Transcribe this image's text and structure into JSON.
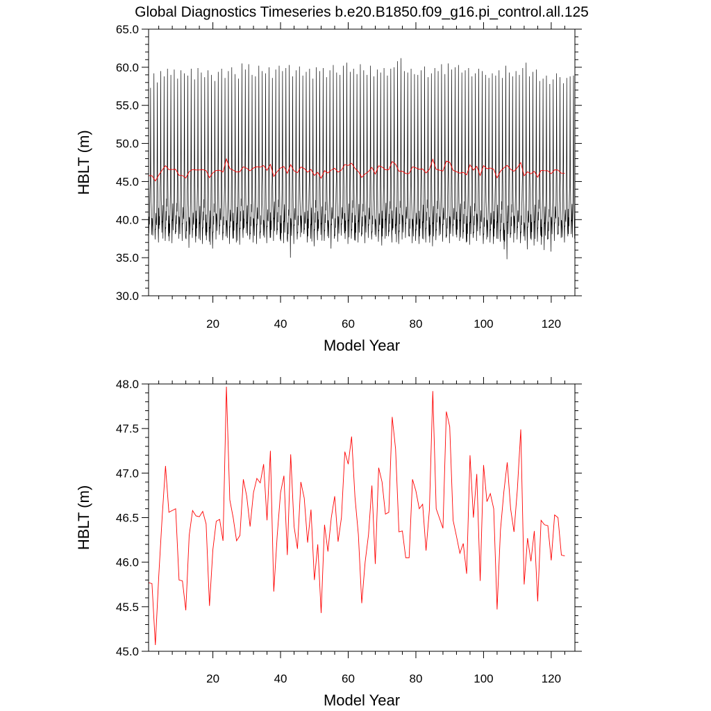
{
  "title": "Global Diagnostics Timeseries b.e20.B1850.f09_g16.pi_control.all.125",
  "colors": {
    "monthly": "#000000",
    "annual": "#ff0000"
  },
  "chart_data": [
    {
      "type": "line",
      "xlabel": "Model Year",
      "ylabel": "HBLT (m)",
      "xlim": [
        1,
        127
      ],
      "ylim": [
        30,
        65
      ],
      "xticks": [
        20,
        40,
        60,
        80,
        100,
        120
      ],
      "xtick_labels": [
        "20",
        "40",
        "60",
        "80",
        "100",
        "120"
      ],
      "yticks": [
        30,
        35,
        40,
        45,
        50,
        55,
        60,
        65
      ],
      "ytick_labels": [
        "30.0",
        "35.0",
        "40.0",
        "45.0",
        "50.0",
        "55.0",
        "60.0",
        "65.0"
      ],
      "series": [
        {
          "color": "#000000",
          "x_start": 1,
          "x_step": 0.0833333,
          "per_year_maxima": [
            57.3,
            59.2,
            58.0,
            59.5,
            58.8,
            59.8,
            59.0,
            59.7,
            58.5,
            59.6,
            59.2,
            58.9,
            59.8,
            58.4,
            59.9,
            59.3,
            58.7,
            59.6,
            59.0,
            58.2,
            59.4,
            59.8,
            58.6,
            59.5,
            60.0,
            59.1,
            58.5,
            60.5,
            59.7,
            60.4,
            59.0,
            58.8,
            60.2,
            59.5,
            59.2,
            60.0,
            58.6,
            59.7,
            60.2,
            59.5,
            59.9,
            60.3,
            58.8,
            59.6,
            60.1,
            58.9,
            59.4,
            59.8,
            58.5,
            60.0,
            59.5,
            59.9,
            58.7,
            59.6,
            60.3,
            59.3,
            59.0,
            60.2,
            60.6,
            59.4,
            59.8,
            59.1,
            60.4,
            59.6,
            59.0,
            60.2,
            58.8,
            59.7,
            59.3,
            59.9,
            58.9,
            59.8,
            60.0,
            60.8,
            61.2,
            59.5,
            59.3,
            59.8,
            59.1,
            59.0,
            59.6,
            60.1,
            58.7,
            59.2,
            59.9,
            59.5,
            60.4,
            59.1,
            60.5,
            59.7,
            60.0,
            60.3,
            59.3,
            59.6,
            59.9,
            58.8,
            59.2,
            59.8,
            59.5,
            59.0,
            58.6,
            59.2,
            58.9,
            59.6,
            58.6,
            60.2,
            59.3,
            58.8,
            59.5,
            59.0,
            59.9,
            60.6,
            58.8,
            59.4,
            59.7,
            58.2,
            58.5,
            58.9,
            57.8,
            58.4,
            59.2,
            58.7,
            57.9,
            58.6,
            58.8,
            58.9
          ],
          "per_year_minima": [
            38.0,
            37.4,
            37.0,
            38.3,
            37.2,
            37.8,
            36.9,
            38.1,
            37.5,
            37.2,
            37.8,
            36.3,
            37.6,
            37.0,
            37.5,
            36.8,
            37.9,
            37.1,
            36.2,
            37.4,
            38.0,
            37.3,
            37.8,
            36.8,
            37.5,
            37.0,
            36.7,
            37.6,
            38.2,
            37.4,
            37.0,
            36.8,
            37.5,
            37.9,
            36.9,
            37.6,
            37.2,
            38.0,
            37.4,
            36.9,
            37.8,
            35.0,
            36.8,
            37.4,
            37.7,
            38.1,
            37.0,
            37.5,
            36.5,
            37.3,
            38.0,
            37.2,
            37.8,
            36.2,
            37.5,
            37.1,
            37.9,
            38.2,
            36.8,
            37.5,
            37.3,
            37.0,
            37.8,
            36.9,
            37.6,
            37.4,
            38.0,
            37.1,
            36.6,
            37.5,
            37.8,
            37.0,
            38.1,
            36.8,
            37.4,
            37.6,
            37.9,
            36.9,
            37.2,
            36.8,
            37.5,
            37.0,
            37.8,
            36.5,
            37.3,
            37.9,
            37.1,
            37.6,
            36.9,
            37.8,
            38.0,
            37.2,
            37.5,
            37.0,
            36.7,
            37.6,
            37.2,
            37.9,
            36.8,
            37.4,
            37.0,
            36.8,
            37.5,
            37.1,
            37.3,
            34.8,
            37.6,
            37.0,
            37.4,
            36.9,
            37.8,
            36.1,
            37.5,
            36.6,
            37.1,
            37.9,
            36.0,
            37.4,
            35.8,
            37.2,
            38.0,
            37.6,
            37.0,
            37.8,
            38.1,
            37.5
          ]
        },
        {
          "color": "#ff0000",
          "x_start": 1,
          "x_step": 1,
          "values": [
            45.77,
            45.76,
            45.07,
            45.84,
            46.5,
            47.08,
            46.56,
            46.58,
            46.6,
            45.8,
            45.79,
            45.46,
            46.3,
            46.58,
            46.52,
            46.51,
            46.57,
            46.43,
            45.51,
            46.14,
            46.46,
            46.48,
            46.24,
            47.97,
            46.7,
            46.5,
            46.24,
            46.3,
            46.93,
            46.74,
            46.4,
            46.78,
            46.94,
            46.89,
            47.1,
            46.47,
            47.25,
            45.67,
            46.29,
            46.78,
            46.97,
            46.08,
            47.21,
            46.4,
            46.15,
            46.9,
            46.72,
            46.22,
            46.59,
            45.8,
            46.2,
            45.43,
            46.42,
            46.12,
            46.5,
            46.74,
            46.23,
            46.5,
            47.24,
            47.1,
            47.41,
            46.73,
            46.31,
            45.54,
            46.0,
            46.31,
            46.86,
            45.98,
            47.06,
            46.9,
            46.54,
            46.56,
            47.63,
            47.27,
            46.34,
            46.35,
            46.05,
            46.05,
            46.93,
            46.8,
            46.6,
            46.65,
            46.13,
            46.59,
            47.92,
            46.6,
            46.49,
            46.38,
            47.69,
            47.52,
            46.47,
            46.29,
            46.1,
            46.21,
            45.87,
            47.2,
            46.5,
            46.99,
            45.79,
            47.09,
            46.68,
            46.77,
            46.6,
            45.47,
            46.36,
            46.79,
            47.12,
            46.6,
            46.34,
            46.82,
            47.49,
            45.75,
            46.27,
            46.01,
            46.35,
            45.56,
            46.47,
            46.42,
            46.41,
            46.02,
            46.53,
            46.5,
            46.08,
            46.07
          ]
        }
      ]
    },
    {
      "type": "line",
      "xlabel": "Model Year",
      "ylabel": "HBLT (m)",
      "xlim": [
        1,
        127
      ],
      "ylim": [
        45,
        48
      ],
      "xticks": [
        20,
        40,
        60,
        80,
        100,
        120
      ],
      "xtick_labels": [
        "20",
        "40",
        "60",
        "80",
        "100",
        "120"
      ],
      "yticks": [
        45,
        45.5,
        46,
        46.5,
        47,
        47.5,
        48
      ],
      "ytick_labels": [
        "45.0",
        "45.5",
        "46.0",
        "46.5",
        "47.0",
        "47.5",
        "48.0"
      ],
      "series": [
        {
          "color": "#ff0000",
          "x_start": 1,
          "x_step": 1,
          "values": [
            45.77,
            45.76,
            45.07,
            45.84,
            46.5,
            47.08,
            46.56,
            46.58,
            46.6,
            45.8,
            45.79,
            45.46,
            46.3,
            46.58,
            46.52,
            46.51,
            46.57,
            46.43,
            45.51,
            46.14,
            46.46,
            46.48,
            46.24,
            47.97,
            46.7,
            46.5,
            46.24,
            46.3,
            46.93,
            46.74,
            46.4,
            46.78,
            46.94,
            46.89,
            47.1,
            46.47,
            47.25,
            45.67,
            46.29,
            46.78,
            46.97,
            46.08,
            47.21,
            46.4,
            46.15,
            46.9,
            46.72,
            46.22,
            46.59,
            45.8,
            46.2,
            45.43,
            46.42,
            46.12,
            46.5,
            46.74,
            46.23,
            46.5,
            47.24,
            47.1,
            47.41,
            46.73,
            46.31,
            45.54,
            46.0,
            46.31,
            46.86,
            45.98,
            47.06,
            46.9,
            46.54,
            46.56,
            47.63,
            47.27,
            46.34,
            46.35,
            46.05,
            46.05,
            46.93,
            46.8,
            46.6,
            46.65,
            46.13,
            46.59,
            47.92,
            46.6,
            46.49,
            46.38,
            47.69,
            47.52,
            46.47,
            46.29,
            46.1,
            46.21,
            45.87,
            47.2,
            46.5,
            46.99,
            45.79,
            47.09,
            46.68,
            46.77,
            46.6,
            45.47,
            46.36,
            46.79,
            47.12,
            46.6,
            46.34,
            46.82,
            47.49,
            45.75,
            46.27,
            46.01,
            46.35,
            45.56,
            46.47,
            46.42,
            46.41,
            46.02,
            46.53,
            46.5,
            46.08,
            46.07
          ]
        }
      ]
    }
  ]
}
